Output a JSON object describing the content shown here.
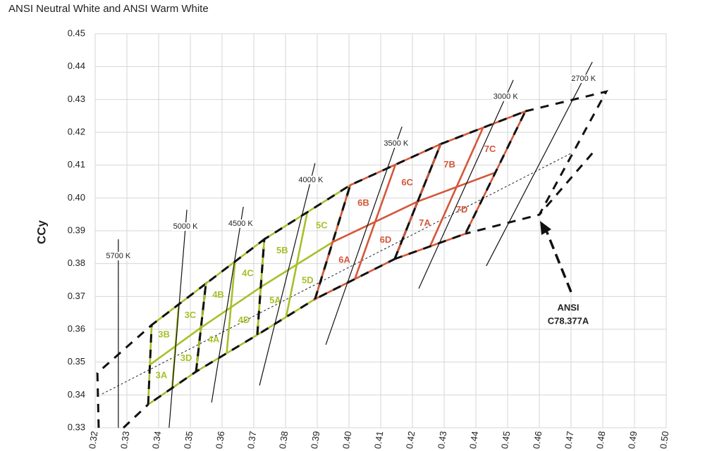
{
  "chart_data": {
    "type": "line",
    "title": "ANSI Neutral White and ANSI Warm White",
    "y_label": "CCy",
    "xlim": [
      0.32,
      0.5
    ],
    "ylim": [
      0.33,
      0.45
    ],
    "xticks": [
      0.32,
      0.33,
      0.34,
      0.35,
      0.36,
      0.37,
      0.38,
      0.39,
      {
        "value": 0.4,
        "label": "0.40"
      },
      0.41,
      0.42,
      0.43,
      0.44,
      0.45,
      0.46,
      0.47,
      0.48,
      0.49,
      {
        "value": 0.5,
        "label": "0.50"
      }
    ],
    "yticks": [
      0.33,
      0.34,
      0.35,
      0.36,
      0.37,
      0.38,
      0.39,
      {
        "value": 0.4,
        "label": "0.40"
      },
      0.41,
      0.42,
      0.43,
      0.44,
      0.45
    ],
    "grid": true,
    "cct_lines": [
      {
        "name": "5700 K",
        "x": [
          0.3273,
          0.3273
        ],
        "y": [
          0.3874,
          0.33
        ]
      },
      {
        "name": "5000 K",
        "x": [
          0.3489,
          0.3433
        ],
        "y": [
          0.3964,
          0.33
        ]
      },
      {
        "name": "4500 K",
        "x": [
          0.3667,
          0.3567
        ],
        "y": [
          0.3973,
          0.3377
        ]
      },
      {
        "name": "4000 K",
        "x": [
          0.3893,
          0.3718
        ],
        "y": [
          0.4106,
          0.3429
        ]
      },
      {
        "name": "3500 K",
        "x": [
          0.4167,
          0.3927
        ],
        "y": [
          0.4217,
          0.3553
        ]
      },
      {
        "name": "3000 K",
        "x": [
          0.4518,
          0.422
        ],
        "y": [
          0.4359,
          0.3724
        ]
      },
      {
        "name": "2700 K",
        "x": [
          0.4767,
          0.4433
        ],
        "y": [
          0.4414,
          0.3793
        ]
      }
    ],
    "bins": [
      {
        "labels": [
          "3A",
          "3B",
          "3C",
          "3D"
        ],
        "color": "#a8bf2a",
        "x": [
          0.3367,
          0.3378,
          0.3549,
          0.3518
        ],
        "y": [
          0.3371,
          0.3613,
          0.3739,
          0.3471
        ]
      },
      {
        "labels": [
          "4A",
          "4B",
          "4C",
          "4D"
        ],
        "color": "#a8bf2a",
        "x": [
          0.3518,
          0.3549,
          0.3733,
          0.3711
        ],
        "y": [
          0.3471,
          0.3739,
          0.3874,
          0.3583
        ]
      },
      {
        "labels": [
          "5A",
          "5B",
          "5C",
          "5D"
        ],
        "color": "#a8bf2a",
        "x": [
          0.3711,
          0.3733,
          0.4004,
          0.3893
        ],
        "y": [
          0.3583,
          0.3874,
          0.4039,
          0.3692
        ]
      },
      {
        "labels": [
          "6A",
          "6B",
          "6C",
          "6D"
        ],
        "color": "#d4573a",
        "x": [
          0.3893,
          0.4004,
          0.4289,
          0.4144
        ],
        "y": [
          0.3692,
          0.4039,
          0.4164,
          0.3814
        ]
      },
      {
        "labels": [
          "7A",
          "7B",
          "7C",
          "7D"
        ],
        "color": "#d4573a",
        "x": [
          0.4144,
          0.4289,
          0.4556,
          0.4367
        ],
        "y": [
          0.3814,
          0.4164,
          0.4264,
          0.3891
        ]
      }
    ],
    "ansi_outlines": [
      {
        "x": [
          0.3211,
          0.3207,
          0.3378
        ],
        "y": [
          0.33,
          0.3467,
          0.3613
        ]
      },
      {
        "x": [
          0.3289,
          0.3367
        ],
        "y": [
          0.33,
          0.3371
        ]
      },
      {
        "x": [
          0.4556,
          0.4811,
          0.46,
          0.4367
        ],
        "y": [
          0.4264,
          0.4324,
          0.3949,
          0.3891
        ]
      },
      {
        "x": [
          0.4767,
          0.46
        ],
        "y": [
          0.4136,
          0.3949
        ]
      }
    ],
    "planckian": {
      "x": [
        0.3222,
        0.47
      ],
      "y": [
        0.3403,
        0.4136
      ]
    },
    "annotation": [
      "ANSI",
      "C78.377A"
    ]
  }
}
